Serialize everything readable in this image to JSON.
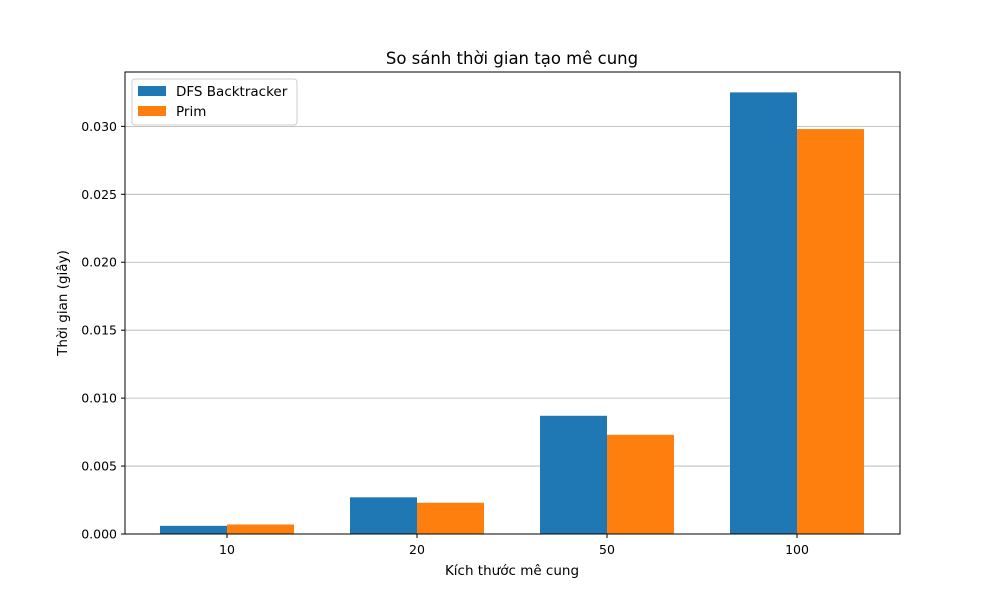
{
  "chart_data": {
    "type": "bar",
    "title": "So sánh thời gian tạo mê cung",
    "xlabel": "Kích thước mê cung",
    "ylabel": "Thời gian (giây)",
    "categories": [
      "10",
      "20",
      "50",
      "100"
    ],
    "series": [
      {
        "name": "DFS Backtracker",
        "color": "#1f77b4",
        "values": [
          0.0006,
          0.0027,
          0.0087,
          0.0325
        ]
      },
      {
        "name": "Prim",
        "color": "#ff7f0e",
        "values": [
          0.0007,
          0.0023,
          0.0073,
          0.0298
        ]
      }
    ],
    "ylim": [
      0,
      0.034
    ],
    "yticks": [
      "0.000",
      "0.005",
      "0.010",
      "0.015",
      "0.020",
      "0.025",
      "0.030"
    ],
    "grid": "y",
    "legend_position": "top-left"
  }
}
